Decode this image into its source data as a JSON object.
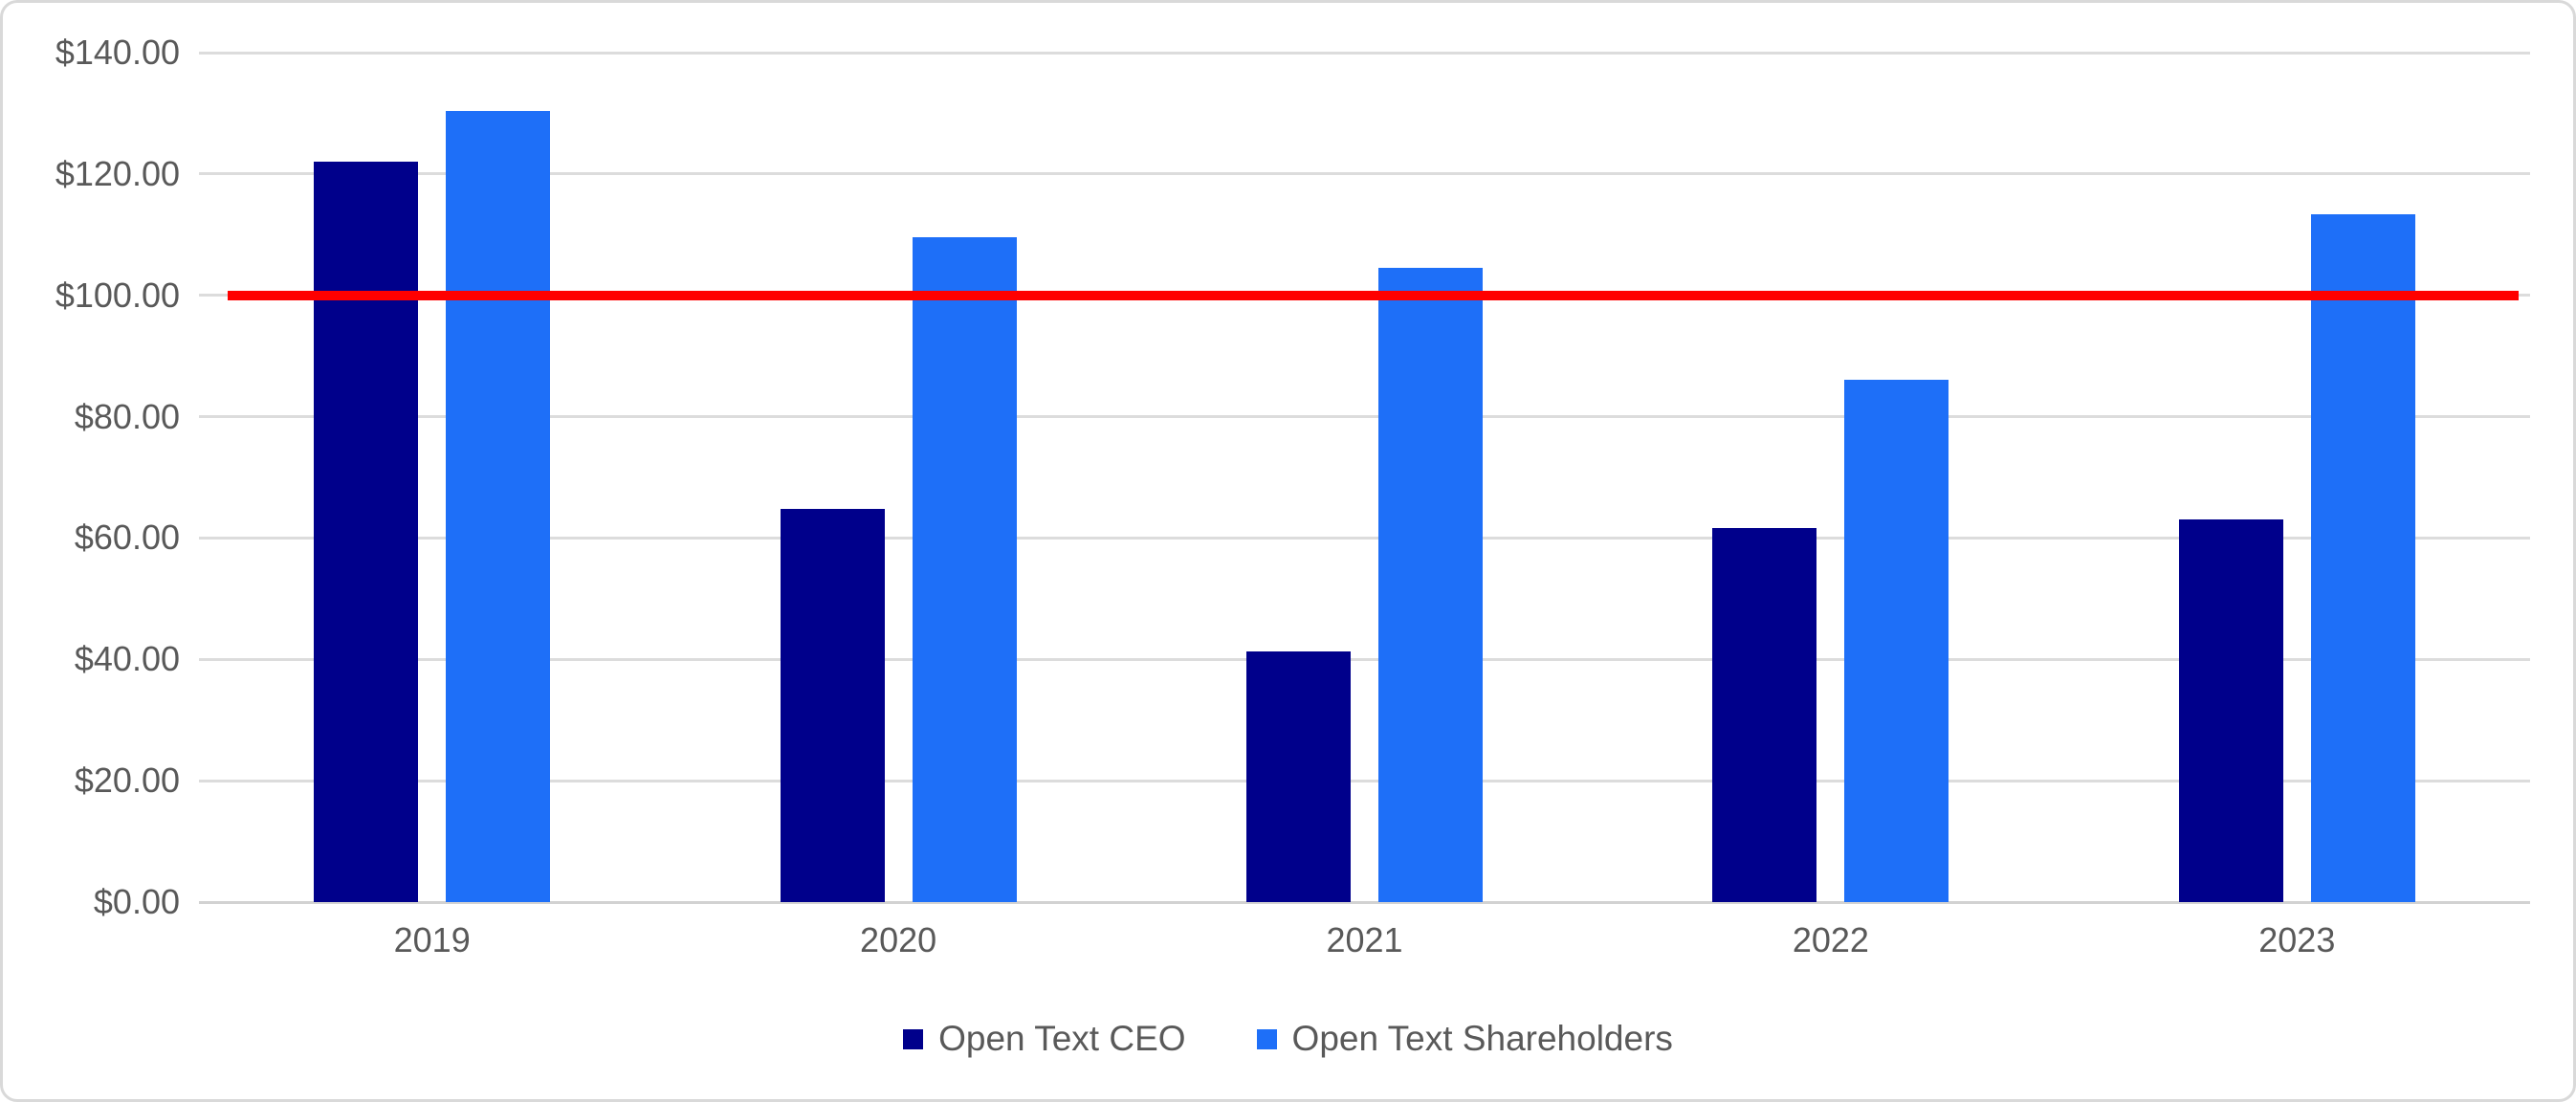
{
  "chart_data": {
    "type": "bar",
    "title": "",
    "categories": [
      "2019",
      "2020",
      "2021",
      "2022",
      "2023"
    ],
    "series": [
      {
        "name": "Open Text CEO",
        "color": "#00008B",
        "values": [
          122.0,
          64.8,
          41.3,
          61.6,
          63.1
        ]
      },
      {
        "name": "Open Text Shareholders",
        "color": "#1E6FF8",
        "values": [
          130.4,
          109.5,
          104.5,
          86.1,
          113.4
        ]
      }
    ],
    "reference_line": {
      "value": 100.0,
      "color": "#FF0000"
    },
    "y_axis": {
      "min": 0,
      "max": 140,
      "step": 20,
      "tick_labels": [
        "$0.00",
        "$20.00",
        "$40.00",
        "$60.00",
        "$80.00",
        "$100.00",
        "$120.00",
        "$140.00"
      ]
    },
    "x_axis": {
      "tick_labels": [
        "2019",
        "2020",
        "2021",
        "2022",
        "2023"
      ]
    },
    "legend": {
      "position": "bottom"
    },
    "grid": true,
    "styles": {
      "grid_color": "#DCDCDC",
      "axis_text_color": "#595959",
      "background": "#FFFFFF",
      "border_color": "#D9D9D9"
    }
  }
}
